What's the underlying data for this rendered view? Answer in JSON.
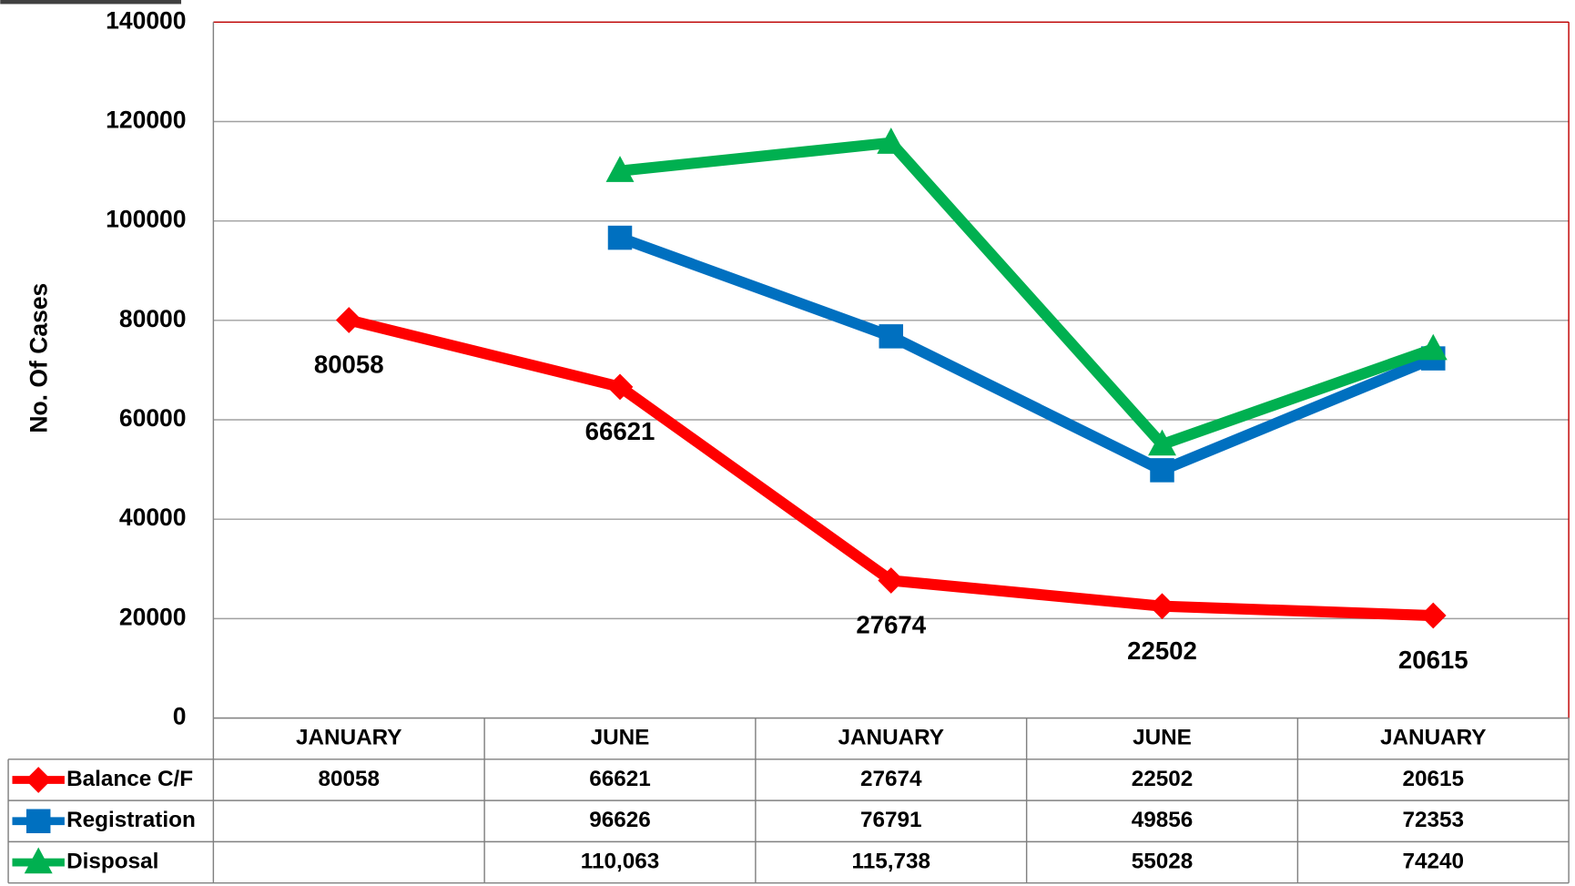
{
  "chart_data": {
    "type": "line",
    "ylabel": "No. Of Cases",
    "categories": [
      "JANUARY",
      "JUNE",
      "JANUARY",
      "JUNE",
      "JANUARY"
    ],
    "series": [
      {
        "name": "Balance C/F",
        "color": "#ff0000",
        "marker": "diamond",
        "values": [
          80058,
          66621,
          27674,
          22502,
          20615
        ]
      },
      {
        "name": "Registration",
        "color": "#0070c0",
        "marker": "square",
        "values": [
          null,
          96626,
          76791,
          49856,
          72353
        ]
      },
      {
        "name": "Disposal",
        "color": "#00b050",
        "marker": "triangle",
        "values": [
          null,
          110063,
          115738,
          55028,
          74240
        ],
        "value_labels": [
          null,
          "110,063",
          "115,738",
          "55028",
          "74240"
        ]
      }
    ],
    "data_labels_series": 0,
    "ylim": [
      0,
      140000
    ],
    "yticks": [
      0,
      20000,
      40000,
      60000,
      80000,
      100000,
      120000,
      140000
    ],
    "grid": true
  }
}
